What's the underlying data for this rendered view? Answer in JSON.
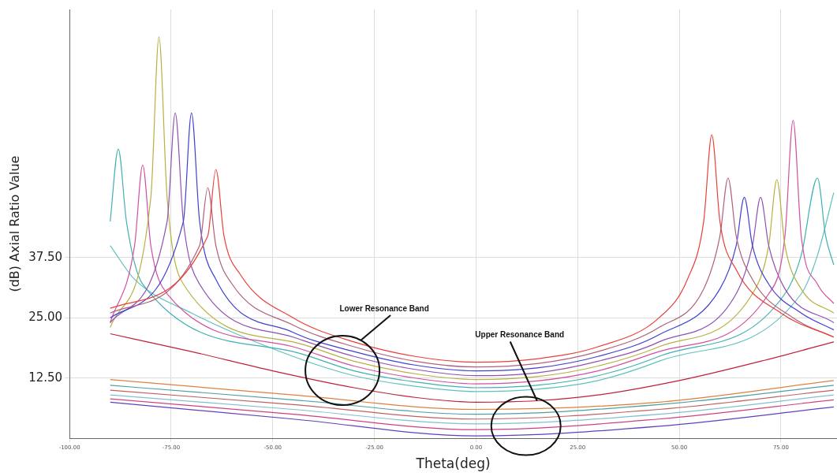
{
  "chart_data": {
    "type": "line",
    "xlabel": "Theta(deg)",
    "ylabel": "(dB) Axial Ratio Value",
    "xlim": [
      -100,
      88.8
    ],
    "ylim": [
      0,
      89
    ],
    "xticks": [
      {
        "value": -100,
        "label": "-100.00"
      },
      {
        "value": -75,
        "label": "-75.00"
      },
      {
        "value": -50,
        "label": "-50.00"
      },
      {
        "value": -25,
        "label": "-25.00"
      },
      {
        "value": 0,
        "label": "0.00"
      },
      {
        "value": 25,
        "label": "25.00"
      },
      {
        "value": 50,
        "label": "50.00"
      },
      {
        "value": 75,
        "label": "75.00"
      }
    ],
    "yticks": [
      {
        "value": 12.5,
        "label": "12.50"
      },
      {
        "value": 25,
        "label": "25.00"
      },
      {
        "value": 37.5,
        "label": "37.50"
      }
    ],
    "grid": true,
    "legend": false,
    "marker": "none",
    "line_style": "solid",
    "annotations": [
      {
        "text": "Lower Resonance Band",
        "x": -28.4,
        "y": 20.3
      },
      {
        "text": "Upper Resonance Band",
        "x": 15,
        "y": 7.8
      }
    ],
    "series": [
      {
        "color": "#e8413c",
        "x": [
          -90,
          -66,
          -64,
          -62,
          -58,
          -45,
          -30,
          -15,
          0,
          15,
          30,
          45,
          52,
          56,
          58,
          60,
          64,
          75,
          88
        ],
        "values": [
          27,
          42,
          55.8,
          42,
          34,
          25,
          20,
          17,
          15.8,
          16.5,
          19,
          25,
          33,
          45,
          63,
          45,
          35,
          26,
          21
        ]
      },
      {
        "color": "#b0607a",
        "x": [
          -90,
          -68,
          -66,
          -64,
          -60,
          -45,
          -30,
          -15,
          0,
          15,
          30,
          45,
          56,
          60,
          62,
          64,
          68,
          78,
          88
        ],
        "values": [
          26,
          40,
          52,
          40,
          32,
          23.5,
          19,
          16,
          14.8,
          15.5,
          18,
          23,
          31,
          42,
          54,
          42,
          33,
          25,
          21
        ]
      },
      {
        "color": "#4040d0",
        "x": [
          -90,
          -72,
          -70,
          -68,
          -64,
          -45,
          -30,
          -15,
          0,
          15,
          30,
          45,
          60,
          64,
          66,
          68,
          72,
          80,
          88
        ],
        "values": [
          25,
          45,
          67.5,
          45,
          33,
          22,
          18,
          15.2,
          14,
          14.6,
          17,
          21.5,
          31,
          40,
          50,
          40,
          32,
          26,
          22.5
        ]
      },
      {
        "color": "#9050b0",
        "x": [
          -90,
          -76,
          -74,
          -72,
          -68,
          -45,
          -30,
          -15,
          0,
          15,
          30,
          45,
          64,
          68,
          70,
          72,
          76,
          88
        ],
        "values": [
          24,
          45,
          67.5,
          45,
          32,
          21,
          17,
          14.3,
          13,
          13.6,
          16,
          20,
          30,
          40,
          50,
          40,
          31,
          24
        ]
      },
      {
        "color": "#b8b040",
        "x": [
          -90,
          -80,
          -78,
          -76,
          -72,
          -45,
          -30,
          -15,
          0,
          15,
          30,
          45,
          68,
          72,
          74,
          76,
          80,
          88
        ],
        "values": [
          23,
          50,
          83.3,
          50,
          32,
          20,
          16,
          13.4,
          12.2,
          12.8,
          15,
          19,
          30,
          40,
          53.7,
          40,
          31,
          26
        ]
      },
      {
        "color": "#d050a0",
        "x": [
          -90,
          -84,
          -82,
          -80,
          -76,
          -45,
          -30,
          -15,
          0,
          15,
          30,
          45,
          72,
          76,
          78,
          80,
          84,
          88
        ],
        "values": [
          24,
          40,
          56.7,
          40,
          30,
          19,
          15,
          12.5,
          11.3,
          11.9,
          14,
          18,
          30,
          42,
          66,
          42,
          32,
          28
        ]
      },
      {
        "color": "#40b0b0",
        "x": [
          -90,
          -88,
          -86,
          -82,
          -45,
          -30,
          -15,
          0,
          15,
          30,
          45,
          76,
          80,
          84,
          86,
          88
        ],
        "values": [
          45,
          60,
          45,
          32,
          18,
          14,
          11.7,
          10.5,
          11,
          13,
          17,
          30,
          38,
          54,
          42,
          36
        ]
      },
      {
        "color": "#60c0c0",
        "x": [
          -90,
          -84,
          -70,
          -45,
          -30,
          -15,
          0,
          15,
          30,
          45,
          80,
          84,
          88
        ],
        "values": [
          40,
          33,
          26,
          17,
          13,
          10.8,
          9.7,
          10.2,
          12,
          16,
          30,
          38,
          51
        ]
      },
      {
        "color": "#c0203a",
        "x": [
          -90,
          -70,
          -50,
          -30,
          -15,
          0,
          15,
          30,
          50,
          70,
          88
        ],
        "values": [
          21.7,
          18,
          14,
          10.5,
          8.5,
          7.5,
          7.8,
          9,
          12,
          16,
          20
        ]
      },
      {
        "color": "#e08040",
        "x": [
          -90,
          -45,
          0,
          45,
          88
        ],
        "values": [
          12.2,
          9,
          6,
          7.5,
          12
        ]
      },
      {
        "color": "#50a0a0",
        "x": [
          -90,
          -45,
          0,
          45,
          88
        ],
        "values": [
          11,
          8,
          5,
          7,
          11
        ]
      },
      {
        "color": "#c06060",
        "x": [
          -90,
          -45,
          0,
          45,
          88
        ],
        "values": [
          10,
          7,
          4,
          6,
          10
        ]
      },
      {
        "color": "#80c0d0",
        "x": [
          -90,
          -45,
          0,
          45,
          88
        ],
        "values": [
          9,
          6,
          3,
          5,
          9
        ]
      },
      {
        "color": "#d04080",
        "x": [
          -90,
          -45,
          0,
          45,
          88
        ],
        "values": [
          8.2,
          5,
          1.8,
          4,
          8
        ]
      },
      {
        "color": "#6040c0",
        "x": [
          -90,
          -45,
          0,
          45,
          88
        ],
        "values": [
          7.5,
          4,
          0.5,
          2.5,
          6.5
        ]
      }
    ]
  }
}
